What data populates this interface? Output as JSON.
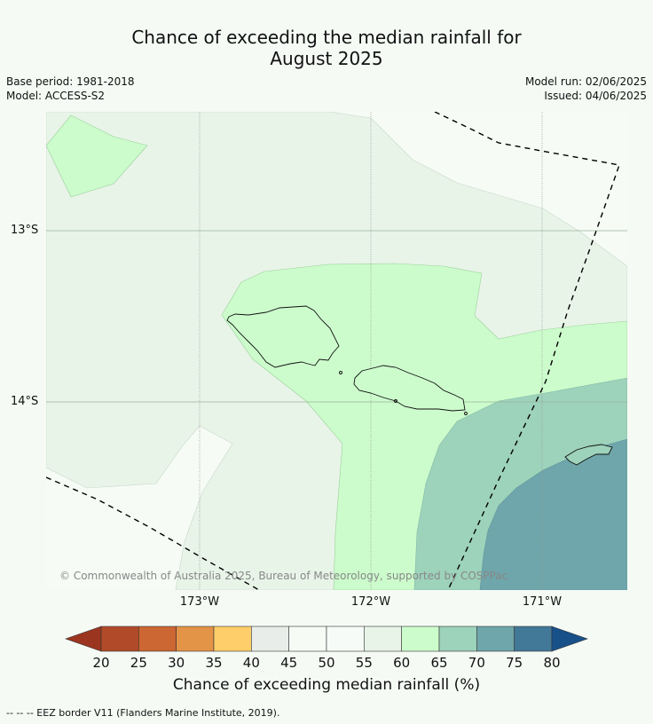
{
  "title_line1": "Chance of exceeding the median rainfall for",
  "title_line2": "August 2025",
  "base_period": "Base period: 1981-2018",
  "model": "Model: ACCESS-S2",
  "model_run": "Model run: 02/06/2025",
  "issued": "Issued: 04/06/2025",
  "lat_labels": [
    "13°S",
    "14°S"
  ],
  "lon_labels": [
    "173°W",
    "172°W",
    "171°W"
  ],
  "copyright": "© Commonwealth of Australia 2025, Bureau of Meteorology, supported by COSPPac",
  "colorbar": {
    "ticks": [
      "20",
      "25",
      "30",
      "35",
      "40",
      "45",
      "50",
      "55",
      "60",
      "65",
      "70",
      "75",
      "80"
    ],
    "colors": [
      "#b04a28",
      "#cc6633",
      "#e39447",
      "#fece6a",
      "#e9ede9",
      "#f6fbf6",
      "#f7fbf7",
      "#e8f4e8",
      "#ccfccc",
      "#9dd2bb",
      "#6fa6ab",
      "#427898"
    ],
    "under_color": "#9b3520",
    "over_color": "#18508a",
    "label": "Chance of exceeding median rainfall (%)"
  },
  "footnote": "--  --  -- EEZ border V11 (Flanders Marine Institute, 2019)."
}
